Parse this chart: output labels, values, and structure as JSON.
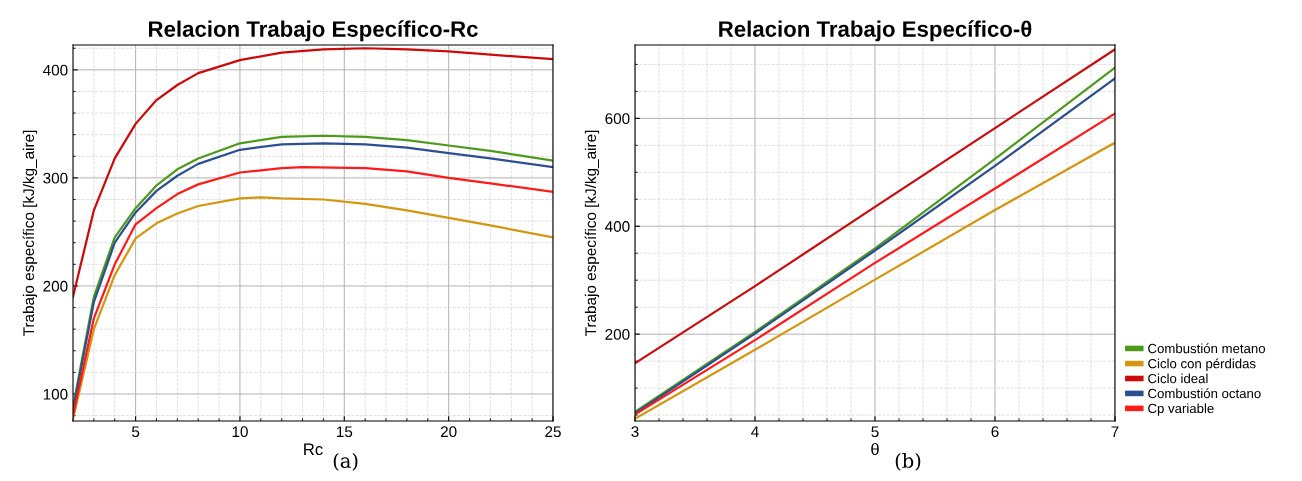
{
  "chart_data": [
    {
      "type": "line",
      "title": "Relacion Trabajo Específico-Rc",
      "xlabel": "Rc",
      "ylabel": "Trabajo específico [kJ/kg_aire]",
      "annotations": [
        "(a)"
      ],
      "xlim": [
        2,
        25
      ],
      "xticks": [
        5,
        10,
        15,
        20,
        25
      ],
      "ylim": [
        75,
        423
      ],
      "yticks": [
        100,
        200,
        300,
        400
      ],
      "grid": true,
      "legend": false,
      "series": [
        {
          "color": "#4c9a1c",
          "x": [
            2,
            3,
            4,
            5,
            6,
            7,
            8,
            10,
            12,
            14,
            16,
            18,
            20,
            22,
            25
          ],
          "values": [
            88,
            190,
            245,
            272,
            293,
            308,
            318,
            332,
            338,
            339,
            338,
            335,
            330,
            325,
            316
          ]
        },
        {
          "color": "#d4960f",
          "x": [
            2,
            3,
            4,
            5,
            6,
            7,
            8,
            10,
            11,
            12,
            14,
            16,
            18,
            20,
            22,
            25
          ],
          "values": [
            77,
            160,
            210,
            244,
            258,
            267,
            274,
            281,
            282,
            281,
            280,
            276,
            270,
            263,
            256,
            245
          ]
        },
        {
          "color": "#cc0a0a",
          "x": [
            2,
            3,
            4,
            5,
            6,
            7,
            8,
            10,
            12,
            14,
            16,
            18,
            20,
            22,
            25
          ],
          "values": [
            190,
            270,
            318,
            350,
            372,
            386,
            397,
            409,
            416,
            419,
            420,
            419,
            417,
            414,
            410
          ]
        },
        {
          "color": "#2b4f91",
          "x": [
            2,
            3,
            4,
            5,
            6,
            7,
            8,
            10,
            12,
            14,
            16,
            18,
            20,
            22,
            25
          ],
          "values": [
            85,
            185,
            240,
            268,
            288,
            302,
            313,
            326,
            331,
            332,
            331,
            328,
            323,
            318,
            310
          ]
        },
        {
          "color": "#ff1a1a",
          "x": [
            2,
            3,
            4,
            5,
            6,
            7,
            8,
            10,
            12,
            13,
            16,
            18,
            20,
            22,
            25
          ],
          "values": [
            80,
            170,
            220,
            257,
            272,
            285,
            294,
            305,
            309,
            310,
            309,
            306,
            300,
            295,
            287
          ]
        }
      ]
    },
    {
      "type": "line",
      "title": "Relacion Trabajo Específico-θ",
      "xlabel": "θ",
      "ylabel": "Trabajo específico [kJ/kg_aire]",
      "annotations": [
        "(b)"
      ],
      "xlim": [
        3,
        7
      ],
      "xticks": [
        3,
        4,
        5,
        6,
        7
      ],
      "ylim": [
        39,
        736
      ],
      "yticks": [
        200,
        400,
        600
      ],
      "grid": true,
      "legend": "right",
      "series": [
        {
          "name": "Combustión metano",
          "color": "#4c9a1c",
          "x": [
            3,
            4,
            5,
            6,
            7
          ],
          "values": [
            56,
            204,
            359,
            525,
            694
          ]
        },
        {
          "name": "Ciclo con pérdidas",
          "color": "#d4960f",
          "x": [
            3,
            4,
            5,
            6,
            7
          ],
          "values": [
            43,
            171,
            301,
            430,
            555
          ]
        },
        {
          "name": "Ciclo ideal",
          "color": "#cc0a0a",
          "x": [
            3,
            4,
            5,
            6,
            7
          ],
          "values": [
            146,
            289,
            436,
            582,
            728
          ]
        },
        {
          "name": "Combustión octano",
          "color": "#2b4f91",
          "x": [
            3,
            4,
            5,
            6,
            7
          ],
          "values": [
            53,
            201,
            355,
            512,
            674
          ]
        },
        {
          "name": "Cp variable",
          "color": "#ff1a1a",
          "x": [
            3,
            4,
            5,
            6,
            7
          ],
          "values": [
            51,
            189,
            332,
            470,
            609
          ]
        }
      ]
    }
  ]
}
